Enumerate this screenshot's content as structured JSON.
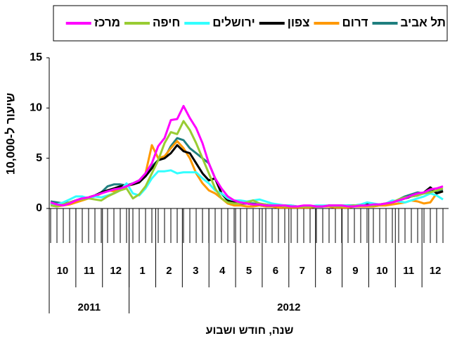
{
  "chart_data": {
    "type": "line",
    "y_label": "שיעור ל-10,000",
    "x_label": "שנה, חודש ושבוע",
    "x_groups": [
      {
        "label": "2011",
        "months": [
          "10",
          "11",
          "12"
        ]
      },
      {
        "label": "2012",
        "months": [
          "1",
          "2",
          "3",
          "4",
          "5",
          "6",
          "7",
          "8",
          "9",
          "10",
          "11",
          "12"
        ]
      }
    ],
    "categories": [
      null,
      null,
      null,
      null,
      null,
      null,
      null,
      null,
      null,
      null,
      null,
      null,
      null,
      null,
      null,
      null,
      null,
      null,
      null,
      null,
      null,
      null,
      null,
      null,
      null,
      null,
      null,
      null,
      null,
      null,
      null,
      null,
      null,
      null,
      null,
      null,
      null,
      null,
      null,
      null,
      null,
      null,
      null,
      null,
      null,
      null,
      null,
      null,
      null,
      null,
      null,
      null,
      null,
      null,
      null,
      null,
      null,
      null,
      null,
      null,
      null,
      null,
      null
    ],
    "ylim": [
      0,
      15
    ],
    "yticks": [
      0,
      5,
      10,
      15
    ],
    "series": [
      {
        "name": "תל אביב",
        "color": "#1f7f7f",
        "values": [
          0.7,
          0.6,
          0.5,
          0.6,
          0.8,
          1.0,
          1.1,
          1.3,
          1.6,
          2.2,
          2.4,
          2.4,
          2.3,
          2.5,
          2.8,
          3.5,
          4.2,
          4.8,
          5.0,
          6.2,
          7.0,
          6.8,
          6.0,
          5.5,
          5.0,
          4.5,
          3.0,
          1.5,
          0.9,
          0.7,
          0.6,
          0.5,
          0.5,
          0.4,
          0.4,
          0.3,
          0.3,
          0.3,
          0.3,
          0.2,
          0.2,
          0.2,
          0.2,
          0.2,
          0.3,
          0.3,
          0.3,
          0.3,
          0.3,
          0.3,
          0.4,
          0.4,
          0.4,
          0.5,
          0.6,
          0.9,
          1.2,
          1.4,
          1.6,
          1.5,
          1.8,
          1.6,
          1.8
        ]
      },
      {
        "name": "דרום",
        "color": "#ff9900",
        "values": [
          0.3,
          0.2,
          0.3,
          0.4,
          0.6,
          0.8,
          1.0,
          1.2,
          1.5,
          1.8,
          1.7,
          2.0,
          2.2,
          2.4,
          2.6,
          3.5,
          6.3,
          5.0,
          5.2,
          6.0,
          6.7,
          6.0,
          5.0,
          3.5,
          2.5,
          1.8,
          1.5,
          1.0,
          0.5,
          0.3,
          0.3,
          0.2,
          0.2,
          0.3,
          0.2,
          0.2,
          0.1,
          0.1,
          0.1,
          0.1,
          0.1,
          0.1,
          0.2,
          0.2,
          0.2,
          0.1,
          0.1,
          0.1,
          0.2,
          0.2,
          0.2,
          0.2,
          0.3,
          0.3,
          0.4,
          0.5,
          0.6,
          0.8,
          0.7,
          0.5,
          0.6,
          1.5,
          1.7
        ]
      },
      {
        "name": "צפון",
        "color": "#000000",
        "values": [
          0.5,
          0.3,
          0.4,
          0.6,
          0.8,
          1.0,
          1.1,
          1.3,
          1.6,
          1.8,
          2.0,
          2.2,
          2.3,
          2.4,
          2.6,
          3.2,
          4.0,
          4.8,
          5.0,
          5.5,
          6.3,
          5.7,
          5.5,
          4.5,
          3.5,
          2.8,
          3.0,
          1.5,
          0.8,
          0.6,
          0.5,
          0.5,
          0.4,
          0.4,
          0.3,
          0.3,
          0.3,
          0.2,
          0.2,
          0.2,
          0.2,
          0.2,
          0.2,
          0.2,
          0.3,
          0.2,
          0.2,
          0.3,
          0.3,
          0.3,
          0.4,
          0.3,
          0.4,
          0.5,
          0.6,
          0.8,
          1.0,
          1.2,
          1.3,
          1.6,
          2.1,
          1.5,
          1.7
        ]
      },
      {
        "name": "ירושלים",
        "color": "#33ffff",
        "values": [
          0.5,
          0.4,
          0.6,
          0.9,
          1.2,
          1.2,
          1.0,
          1.2,
          1.1,
          1.3,
          1.5,
          1.8,
          2.5,
          1.5,
          1.3,
          2.0,
          3.0,
          3.7,
          3.7,
          3.8,
          3.5,
          3.6,
          3.6,
          3.6,
          3.0,
          2.5,
          1.8,
          1.5,
          1.0,
          0.8,
          0.8,
          0.7,
          0.8,
          0.9,
          0.7,
          0.5,
          0.4,
          0.3,
          0.3,
          0.2,
          0.2,
          0.2,
          0.3,
          0.3,
          0.3,
          0.2,
          0.3,
          0.3,
          0.3,
          0.4,
          0.6,
          0.5,
          0.4,
          0.5,
          0.8,
          0.7,
          0.6,
          0.8,
          1.0,
          1.2,
          1.5,
          1.3,
          0.9
        ]
      },
      {
        "name": "חיפה",
        "color": "#99cc33",
        "values": [
          0.3,
          0.2,
          0.4,
          0.6,
          0.8,
          0.9,
          1.0,
          0.9,
          0.8,
          1.2,
          1.5,
          1.8,
          2.0,
          1.0,
          1.4,
          2.2,
          3.5,
          4.8,
          6.5,
          7.6,
          7.4,
          8.7,
          7.8,
          6.5,
          5.0,
          3.5,
          2.0,
          1.0,
          0.6,
          0.5,
          0.5,
          0.6,
          0.8,
          0.5,
          0.4,
          0.3,
          0.3,
          0.2,
          0.2,
          0.2,
          0.2,
          0.2,
          0.2,
          0.2,
          0.3,
          0.2,
          0.2,
          0.2,
          0.3,
          0.3,
          0.3,
          0.3,
          0.4,
          0.5,
          0.6,
          0.9,
          1.1,
          1.2,
          1.3,
          1.5,
          1.6,
          1.8,
          2.0
        ]
      },
      {
        "name": "מרכז",
        "color": "#ff00ff",
        "values": [
          0.6,
          0.4,
          0.3,
          0.5,
          0.8,
          1.0,
          1.1,
          1.3,
          1.5,
          1.7,
          1.9,
          2.0,
          2.2,
          2.5,
          2.8,
          3.5,
          4.5,
          6.2,
          7.0,
          8.8,
          8.9,
          10.2,
          9.0,
          8.0,
          6.5,
          4.5,
          3.0,
          2.0,
          1.2,
          0.8,
          0.6,
          0.5,
          0.4,
          0.4,
          0.3,
          0.3,
          0.3,
          0.3,
          0.2,
          0.2,
          0.3,
          0.3,
          0.2,
          0.2,
          0.3,
          0.3,
          0.3,
          0.2,
          0.2,
          0.3,
          0.3,
          0.4,
          0.4,
          0.5,
          0.6,
          0.8,
          1.0,
          1.3,
          1.5,
          1.6,
          1.9,
          2.0,
          2.2
        ]
      }
    ]
  }
}
